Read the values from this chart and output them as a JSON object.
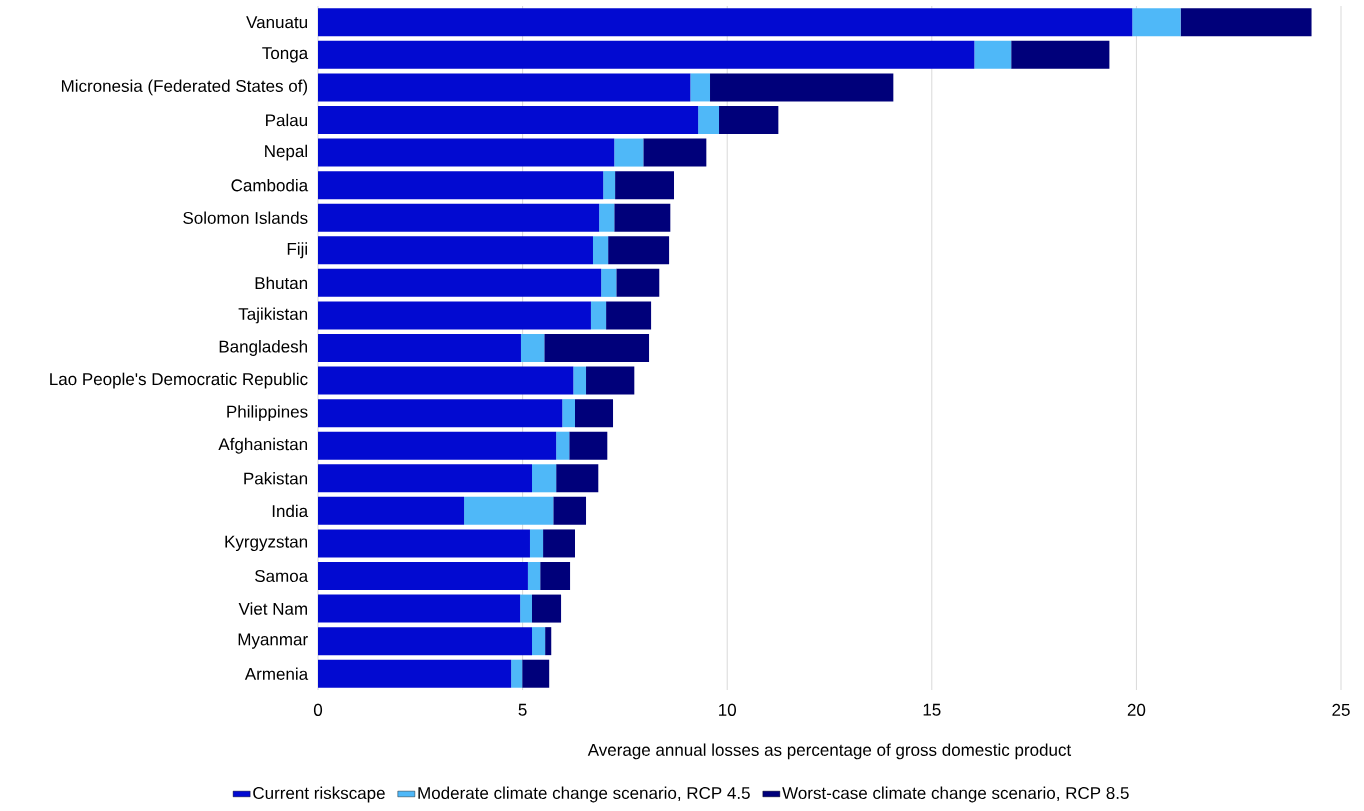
{
  "chart_data": {
    "type": "bar",
    "orientation": "horizontal",
    "stacked": true,
    "categories": [
      "Vanuatu",
      "Tonga",
      "Micronesia (Federated States of)",
      "Palau",
      "Nepal",
      "Cambodia",
      "Solomon Islands",
      "Fiji",
      "Bhutan",
      "Tajikistan",
      "Bangladesh",
      "Lao People's Democratic Republic",
      "Philippines",
      "Afghanistan",
      "Pakistan",
      "India",
      "Kyrgyzstan",
      "Samoa",
      "Viet Nam",
      "Myanmar",
      "Armenia"
    ],
    "series": [
      {
        "name": "Current riskscape",
        "color": "#020ad1",
        "values": [
          19.9,
          16.04,
          9.1,
          9.29,
          7.24,
          6.97,
          6.87,
          6.72,
          6.92,
          6.67,
          4.96,
          6.24,
          5.97,
          5.82,
          5.23,
          3.57,
          5.18,
          5.13,
          4.94,
          5.23,
          4.72
        ]
      },
      {
        "name": "Moderate climate change scenario, RCP 4.5",
        "color": "#4fb8f8",
        "values": [
          1.18,
          0.9,
          0.48,
          0.51,
          0.71,
          0.29,
          0.37,
          0.37,
          0.37,
          0.37,
          0.57,
          0.31,
          0.31,
          0.32,
          0.59,
          2.18,
          0.32,
          0.3,
          0.29,
          0.32,
          0.27
        ]
      },
      {
        "name": "Worst-case climate change scenario, RCP 8.5",
        "color": "#00007a",
        "values": [
          3.2,
          2.4,
          4.48,
          1.45,
          1.54,
          1.44,
          1.37,
          1.49,
          1.05,
          1.1,
          2.56,
          1.18,
          0.93,
          0.93,
          1.03,
          0.8,
          0.78,
          0.73,
          0.71,
          0.15,
          0.66
        ]
      }
    ],
    "xlabel": "Average annual losses as percentage of gross domestic product",
    "xlim": [
      0,
      25
    ],
    "xticks": [
      0,
      5,
      10,
      15,
      20,
      25
    ],
    "grid": "x",
    "legend": "bottom"
  }
}
